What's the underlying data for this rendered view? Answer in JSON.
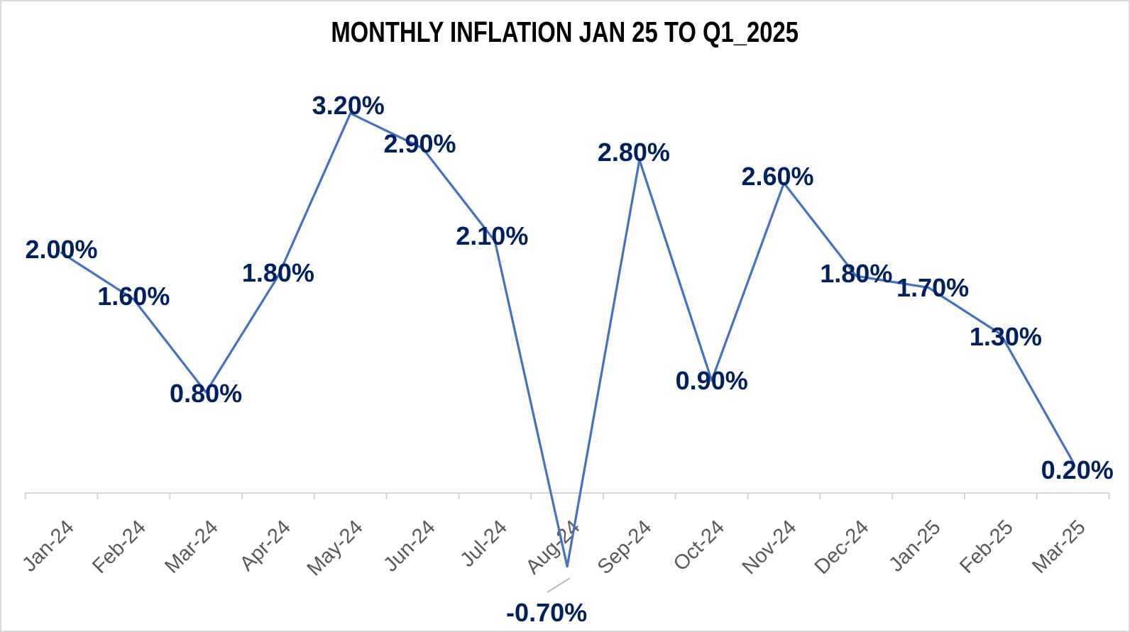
{
  "chart_data": {
    "type": "line",
    "title": "MONTHLY INFLATION JAN 25 TO Q1_2025",
    "categories": [
      "Jan-24",
      "Feb-24",
      "Mar-24",
      "Apr-24",
      "May-24",
      "Jun-24",
      "Jul-24",
      "Aug-24",
      "Sep-24",
      "Oct-24",
      "Nov-24",
      "Dec-24",
      "Jan-25",
      "Feb-25",
      "Mar-25"
    ],
    "values": [
      2.0,
      1.6,
      0.8,
      1.8,
      3.2,
      2.9,
      2.1,
      -0.7,
      2.8,
      0.9,
      2.6,
      1.8,
      1.7,
      1.3,
      0.2
    ],
    "data_labels": [
      "2.00%",
      "1.60%",
      "0.80%",
      "1.80%",
      "3.20%",
      "2.90%",
      "2.10%",
      "-0.70%",
      "2.80%",
      "0.90%",
      "2.60%",
      "1.80%",
      "1.70%",
      "1.30%",
      "0.20%"
    ],
    "xlabel": "",
    "ylabel": "",
    "ylim": [
      -0.7,
      3.2
    ],
    "grid": false,
    "legend": "none",
    "y_axis_visible": false,
    "colors": {
      "line": "#4472C4",
      "data_label": "#002060",
      "axis_line": "#D6D6D6",
      "tick_label": "#595959",
      "leader_line": "#A6A6A6",
      "title": "#000000",
      "background": "#FFFFFF"
    },
    "annotations": {
      "moved_label": {
        "category": "Aug-24",
        "label": "-0.70%",
        "leader_line": true,
        "position": "below-left of point"
      }
    }
  }
}
